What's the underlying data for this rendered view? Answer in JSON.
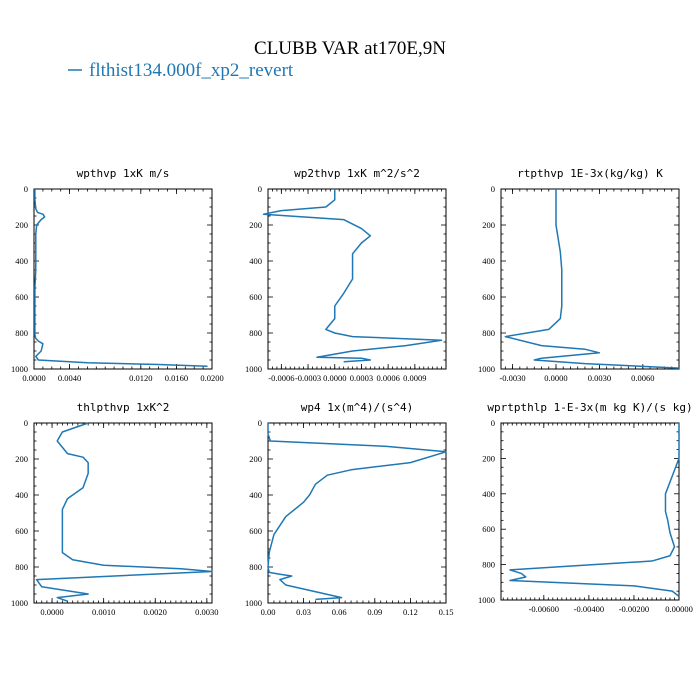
{
  "title": "CLUBB VAR at170E,9N",
  "legend": {
    "label": "flthist134.000f_xp2_revert",
    "color": "#1f77b4"
  },
  "chart_data": [
    {
      "type": "line",
      "title": "wpthvp  1xK m/s",
      "xlim": [
        0.0,
        0.02
      ],
      "ylim": [
        1000,
        0
      ],
      "xticks": [
        "0.0000",
        "0.0040",
        "0.0120",
        "0.0160",
        "0.0200"
      ],
      "xtick_values": [
        0.0,
        0.004,
        0.012,
        0.016,
        0.02
      ],
      "yticks": [
        "0",
        "200",
        "400",
        "600",
        "800",
        "1000"
      ],
      "yminor": 50,
      "xminor": 0.001,
      "series": [
        {
          "x": [
            0.0001,
            0.0001,
            0.0002,
            0.0004,
            0.001,
            0.0012,
            0.0008,
            0.0003,
            0.0002,
            0.0002,
            0.0002,
            0.0001,
            0.0001,
            0.0001,
            0.0001,
            0.0002,
            0.0005,
            0.001,
            0.0008,
            0.0002,
            0.0005,
            0.006,
            0.014,
            0.0195
          ],
          "y": [
            0,
            60,
            110,
            130,
            140,
            155,
            170,
            200,
            250,
            350,
            450,
            550,
            650,
            750,
            810,
            830,
            845,
            860,
            900,
            930,
            950,
            965,
            975,
            985
          ]
        }
      ]
    },
    {
      "type": "line",
      "title": "wp2thvp  1xK m^2/s^2",
      "xlim": [
        -0.00075,
        0.00125
      ],
      "ylim": [
        1000,
        0
      ],
      "xticks": [
        "-0.0006",
        "-0.0003",
        "0.0000",
        "0.0003",
        "0.0006",
        "0.0009"
      ],
      "xtick_values": [
        -0.0006,
        -0.0003,
        0.0,
        0.0003,
        0.0006,
        0.0009
      ],
      "yticks": [
        "0",
        "200",
        "400",
        "600",
        "800",
        "1000"
      ],
      "yminor": 50,
      "xminor": 5e-05,
      "series": [
        {
          "x": [
            0.0,
            0.0,
            -0.0001,
            -0.0006,
            -0.0008,
            0.0001,
            0.0003,
            0.0004,
            0.0003,
            0.0002,
            0.0002,
            0.0002,
            0.0001,
            0.0,
            0.0,
            -0.0001,
            0.0,
            0.0002,
            0.0012,
            0.0008,
            0.0002,
            -0.0002,
            0.0003,
            0.0004,
            0.0001
          ],
          "y": [
            0,
            60,
            100,
            120,
            140,
            170,
            220,
            260,
            300,
            360,
            420,
            500,
            580,
            650,
            720,
            780,
            800,
            820,
            840,
            870,
            900,
            935,
            940,
            950,
            960
          ]
        }
      ]
    },
    {
      "type": "line",
      "title": "rtpthvp  1E-3x(kg/kg) K",
      "xlim": [
        -0.0038,
        0.0085
      ],
      "ylim": [
        1000,
        0
      ],
      "xticks": [
        "-0.0030",
        "0.0000",
        "0.0030",
        "0.0060"
      ],
      "xtick_values": [
        -0.003,
        0.0,
        0.003,
        0.006
      ],
      "yticks": [
        "0",
        "200",
        "400",
        "600",
        "800",
        "1000"
      ],
      "yminor": 50,
      "xminor": 0.0005,
      "series": [
        {
          "x": [
            0.0,
            0.0,
            0.0,
            0.0003,
            0.0004,
            0.0004,
            0.0004,
            0.0003,
            -0.0005,
            -0.0035,
            -0.001,
            0.002,
            0.003,
            -0.001,
            -0.0015,
            0.002,
            0.0085
          ],
          "y": [
            0,
            100,
            200,
            350,
            450,
            550,
            650,
            720,
            780,
            820,
            870,
            890,
            910,
            940,
            950,
            970,
            995
          ]
        }
      ]
    },
    {
      "type": "line",
      "title": "thlpthvp  1xK^2",
      "xlim": [
        -0.00035,
        0.0031
      ],
      "ylim": [
        1000,
        0
      ],
      "xticks": [
        "0.0000",
        "0.0010",
        "0.0020",
        "0.0030"
      ],
      "xtick_values": [
        0.0,
        0.001,
        0.002,
        0.003
      ],
      "yticks": [
        "0",
        "200",
        "400",
        "600",
        "800",
        "1000"
      ],
      "yminor": 50,
      "xminor": 0.0001,
      "series": [
        {
          "x": [
            0.0007,
            0.0002,
            0.0001,
            0.0003,
            0.0006,
            0.0007,
            0.0007,
            0.0006,
            0.0003,
            0.0002,
            0.0002,
            0.0002,
            0.0002,
            0.0004,
            0.001,
            0.0025,
            0.0031,
            -0.0003,
            -0.0002,
            0.0007,
            0.0001,
            0.0003
          ],
          "y": [
            0,
            50,
            100,
            170,
            190,
            220,
            280,
            360,
            420,
            480,
            550,
            650,
            720,
            760,
            790,
            810,
            825,
            870,
            910,
            950,
            970,
            990
          ]
        }
      ]
    },
    {
      "type": "line",
      "title": "wp4  1x(m^4)/(s^4)",
      "xlim": [
        0.0,
        0.15
      ],
      "ylim": [
        1000,
        0
      ],
      "xticks": [
        "0.00",
        "0.03",
        "0.06",
        "0.09",
        "0.12",
        "0.15"
      ],
      "xtick_values": [
        0.0,
        0.03,
        0.06,
        0.09,
        0.12,
        0.15
      ],
      "yticks": [
        "0",
        "200",
        "400",
        "600",
        "800",
        "1000"
      ],
      "yminor": 50,
      "xminor": 0.005,
      "series": [
        {
          "x": [
            0.0,
            0.0,
            0.002,
            0.1,
            0.15,
            0.12,
            0.07,
            0.05,
            0.04,
            0.035,
            0.03,
            0.015,
            0.005,
            0.001,
            0.0,
            0.001,
            0.01,
            0.02,
            0.01,
            0.015,
            0.035,
            0.062,
            0.04
          ],
          "y": [
            0,
            60,
            100,
            130,
            160,
            220,
            260,
            290,
            340,
            400,
            440,
            520,
            620,
            720,
            800,
            830,
            840,
            850,
            870,
            900,
            930,
            970,
            980
          ]
        }
      ]
    },
    {
      "type": "line",
      "title": "wprtpthlp  1-E-3x(m kg K)/(s kg)",
      "xlim": [
        -0.0079,
        0.0
      ],
      "ylim": [
        1000,
        0
      ],
      "xticks": [
        "-0.00600",
        "-0.00400",
        "-0.00200",
        "0.00000"
      ],
      "xtick_values": [
        -0.006,
        -0.004,
        -0.002,
        0.0
      ],
      "yticks": [
        "0",
        "200",
        "400",
        "600",
        "800",
        "1000"
      ],
      "yminor": 50,
      "xminor": 0.0002,
      "series": [
        {
          "x": [
            0.0,
            0.0,
            0.0,
            -0.0003,
            -0.0006,
            -0.0006,
            -0.0005,
            -0.0004,
            -0.0002,
            -0.0004,
            -0.0012,
            -0.0038,
            -0.0075,
            -0.007,
            -0.0068,
            -0.0075,
            -0.002,
            -0.0003,
            0.0
          ],
          "y": [
            0,
            100,
            200,
            300,
            400,
            500,
            550,
            620,
            700,
            750,
            780,
            800,
            830,
            850,
            870,
            890,
            920,
            950,
            980
          ]
        }
      ]
    }
  ]
}
